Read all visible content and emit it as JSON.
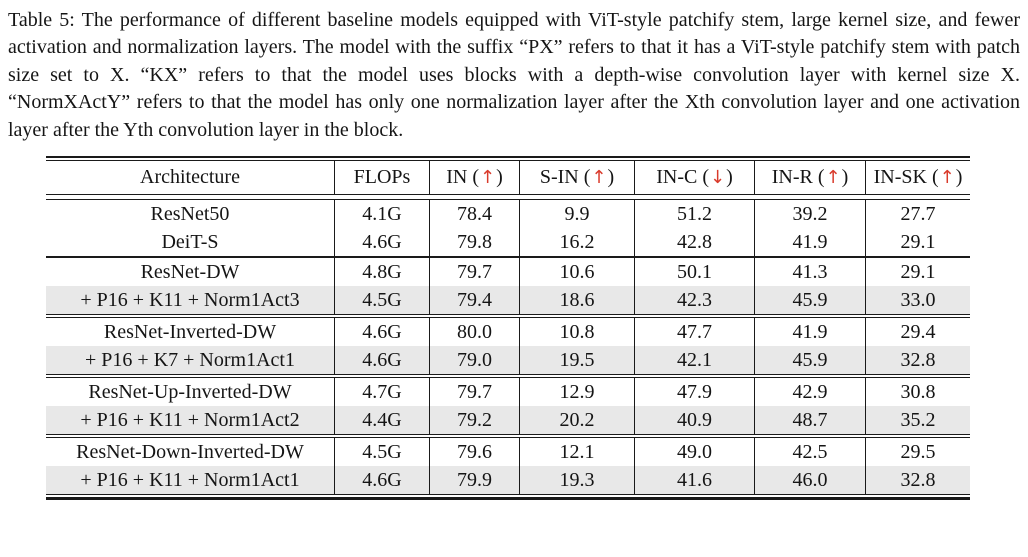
{
  "page": {
    "background": "#ffffff"
  },
  "caption": {
    "label": "Table 5: ",
    "text": "The performance of different baseline models equipped with ViT-style patchify stem, large kernel size, and fewer activation and normalization layers. The model with the suffix “PX” refers to that it has a ViT-style patchify stem with patch size set to X. “KX” refers to that the model uses blocks with a depth-wise convolution layer with kernel size X. “NormXActY” refers to that the model has only one normalization layer after the Xth convolution layer and one activation layer after the Yth convolution layer in the block."
  },
  "colors": {
    "arrow_red": "#d93a2b",
    "row_highlight": "#e8e8e8",
    "rule": "#1a1a1a",
    "text": "#151515"
  },
  "glyphs": {
    "up_arrow": "↑",
    "down_arrow": "↓"
  },
  "table": {
    "columns": [
      {
        "label": "Architecture",
        "arrow": null
      },
      {
        "label": "FLOPs",
        "arrow": null
      },
      {
        "label": "IN",
        "arrow": "up"
      },
      {
        "label": "S-IN",
        "arrow": "up"
      },
      {
        "label": "IN-C",
        "arrow": "down"
      },
      {
        "label": "IN-R",
        "arrow": "up"
      },
      {
        "label": "IN-SK",
        "arrow": "up"
      }
    ],
    "groups": [
      {
        "separator_after": "single",
        "rows": [
          {
            "architecture": "ResNet50",
            "highlight": false,
            "values": [
              "4.1G",
              "78.4",
              "9.9",
              "51.2",
              "39.2",
              "27.7"
            ]
          },
          {
            "architecture": "DeiT-S",
            "highlight": false,
            "values": [
              "4.6G",
              "79.8",
              "16.2",
              "42.8",
              "41.9",
              "29.1"
            ]
          }
        ]
      },
      {
        "separator_after": "double",
        "rows": [
          {
            "architecture": "ResNet-DW",
            "highlight": false,
            "values": [
              "4.8G",
              "79.7",
              "10.6",
              "50.1",
              "41.3",
              "29.1"
            ]
          },
          {
            "architecture": "+ P16 + K11 + Norm1Act3",
            "highlight": true,
            "values": [
              "4.5G",
              "79.4",
              "18.6",
              "42.3",
              "45.9",
              "33.0"
            ]
          }
        ]
      },
      {
        "separator_after": "double",
        "rows": [
          {
            "architecture": "ResNet-Inverted-DW",
            "highlight": false,
            "values": [
              "4.6G",
              "80.0",
              "10.8",
              "47.7",
              "41.9",
              "29.4"
            ]
          },
          {
            "architecture": "+ P16 + K7 + Norm1Act1",
            "highlight": true,
            "values": [
              "4.6G",
              "79.0",
              "19.5",
              "42.1",
              "45.9",
              "32.8"
            ]
          }
        ]
      },
      {
        "separator_after": "double",
        "rows": [
          {
            "architecture": "ResNet-Up-Inverted-DW",
            "highlight": false,
            "values": [
              "4.7G",
              "79.7",
              "12.9",
              "47.9",
              "42.9",
              "30.8"
            ]
          },
          {
            "architecture": "+ P16 + K11 + Norm1Act2",
            "highlight": true,
            "values": [
              "4.4G",
              "79.2",
              "20.2",
              "40.9",
              "48.7",
              "35.2"
            ]
          }
        ]
      },
      {
        "separator_after": null,
        "rows": [
          {
            "architecture": "ResNet-Down-Inverted-DW",
            "highlight": false,
            "values": [
              "4.5G",
              "79.6",
              "12.1",
              "49.0",
              "42.5",
              "29.5"
            ]
          },
          {
            "architecture": "+ P16 + K11 + Norm1Act1",
            "highlight": true,
            "values": [
              "4.6G",
              "79.9",
              "19.3",
              "41.6",
              "46.0",
              "32.8"
            ]
          }
        ]
      }
    ]
  }
}
